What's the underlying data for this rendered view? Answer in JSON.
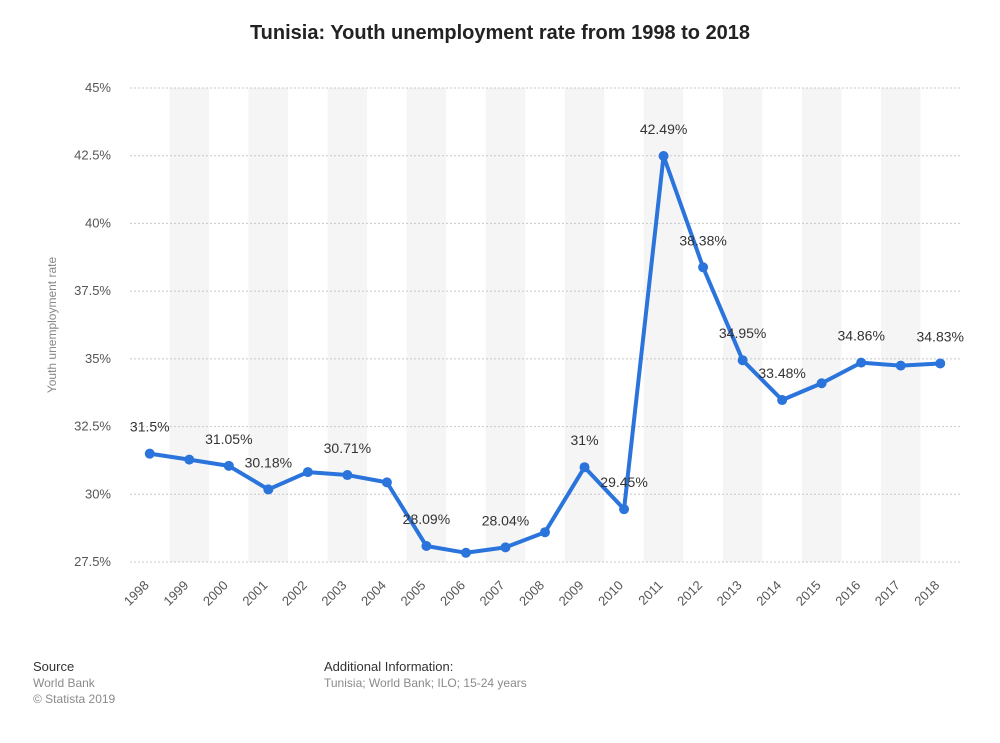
{
  "chart_data": {
    "type": "line",
    "title": "Tunisia: Youth unemployment rate from 1998 to 2018",
    "xlabel": "",
    "ylabel": "Youth unemployment rate",
    "categories": [
      "1998",
      "1999",
      "2000",
      "2001",
      "2002",
      "2003",
      "2004",
      "2005",
      "2006",
      "2007",
      "2008",
      "2009",
      "2010",
      "2011",
      "2012",
      "2013",
      "2014",
      "2015",
      "2016",
      "2017",
      "2018"
    ],
    "series": [
      {
        "values": [
          31.5,
          31.28,
          31.05,
          30.18,
          30.82,
          30.71,
          30.44,
          28.09,
          27.84,
          28.04,
          28.6,
          31.0,
          29.45,
          42.49,
          38.38,
          34.95,
          33.48,
          34.1,
          34.86,
          34.75,
          34.83
        ]
      }
    ],
    "data_labels": [
      "31.5%",
      "",
      "31.05%",
      "30.18%",
      "",
      "30.71%",
      "",
      "28.09%",
      "",
      "28.04%",
      "",
      "31%",
      "29.45%",
      "42.49%",
      "38.38%",
      "34.95%",
      "33.48%",
      "",
      "34.86%",
      "",
      "34.83%"
    ],
    "ylim": [
      27.5,
      45
    ],
    "yticks": [
      27.5,
      30,
      32.5,
      35,
      37.5,
      40,
      42.5,
      45
    ],
    "ytick_labels": [
      "27.5%",
      "30%",
      "32.5%",
      "35%",
      "37.5%",
      "40%",
      "42.5%",
      "45%"
    ],
    "grid": true,
    "legend": "none",
    "colors": {
      "line": "#2a74dc",
      "band": "#f5f5f5",
      "grid": "#c8c8c8"
    }
  },
  "footer": {
    "source_heading": "Source",
    "source_lines": [
      "World Bank",
      "© Statista 2019"
    ],
    "info_heading": "Additional Information:",
    "info_text": "Tunisia; World Bank; ILO; 15-24 years"
  }
}
